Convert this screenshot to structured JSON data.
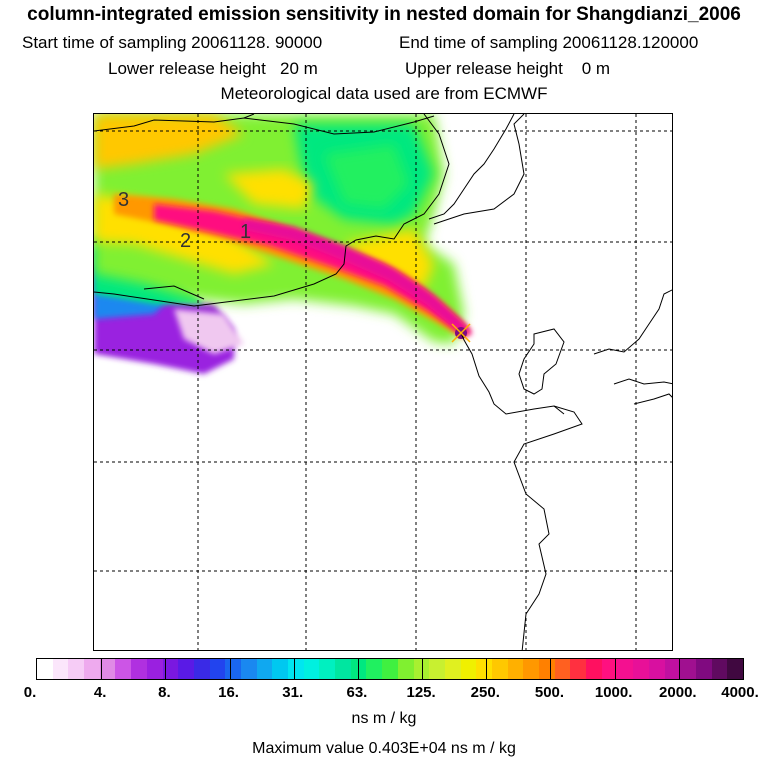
{
  "title": {
    "line1": "column-integrated emission sensitivity in nested domain for Shangdianzi_2006",
    "start": "Start time of sampling 20061128. 90000",
    "end": "End time of sampling 20061128.120000",
    "lower": "Lower release height   20 m",
    "upper": "Upper release height    0 m",
    "met": "Meteorological data used are from ECMWF"
  },
  "contour_labels": [
    "3",
    "2",
    "1"
  ],
  "colorbar": {
    "labels": [
      "0.",
      "4.",
      "8.",
      "16.",
      "31.",
      "63.",
      "125.",
      "250.",
      "500.",
      "1000.",
      "2000.",
      "4000."
    ],
    "colors": [
      "#ffffff",
      "#fbe6fb",
      "#f6ccf6",
      "#eeaaee",
      "#e08ae6",
      "#cc55e6",
      "#b030e0",
      "#9a20e0",
      "#7a18e0",
      "#5a1ae6",
      "#3a2ae6",
      "#2244ee",
      "#1a66f0",
      "#1a88f0",
      "#10a8f0",
      "#00c8f0",
      "#00e6f0",
      "#00f0e0",
      "#00f0c0",
      "#00e6a0",
      "#00e880",
      "#20f060",
      "#40f040",
      "#80f030",
      "#a8f030",
      "#c8f030",
      "#e0f020",
      "#f0f000",
      "#ffe000",
      "#ffc800",
      "#ffb000",
      "#ff9800",
      "#ff8000",
      "#ff6020",
      "#ff3040",
      "#ff1060",
      "#ff1080",
      "#f41090",
      "#e81098",
      "#d810a0",
      "#c010a0",
      "#a01090",
      "#800a80",
      "#600a60",
      "#400840"
    ],
    "unit": "ns m / kg"
  },
  "max_value": "Maximum value  0.403E+04 ns m / kg"
}
